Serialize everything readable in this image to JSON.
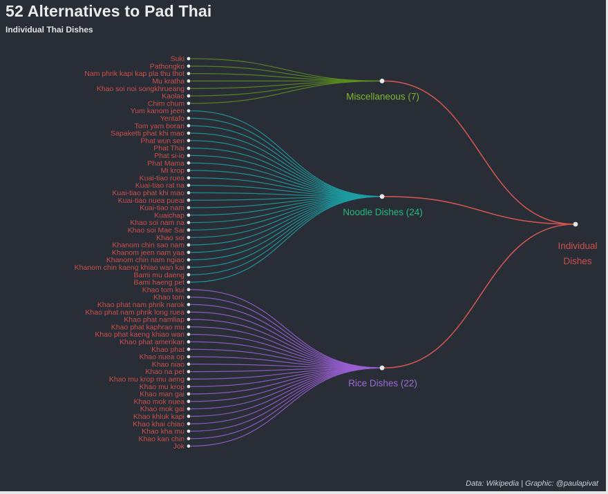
{
  "header": {
    "title": "52 Alternatives to Pad Thai",
    "subtitle": "Individual Thai Dishes"
  },
  "footer": {
    "credit": "Data: Wikipedia | Graphic: @paulapivat"
  },
  "colors": {
    "background": "#292e36",
    "title_text": "#ececec",
    "leaf_label": "#cb4f4c",
    "node_dot": "#e8e8e8",
    "root_link": "#cf5550",
    "root_label": "#cb4f4c",
    "footer_text": "#ccd1d7",
    "frame_border": "#e8e8e8"
  },
  "chart_data": {
    "type": "dendrogram",
    "title": "52 Alternatives to Pad Thai",
    "subtitle": "Individual Thai Dishes",
    "legend_position": "none",
    "root": {
      "label_lines": [
        "Individual",
        "Dishes"
      ],
      "color": "#cb4f4c"
    },
    "groups": [
      {
        "name": "Miscellaneous",
        "count": 7,
        "label": "Miscellaneous (7)",
        "label_color": "#7cb82f",
        "link_color": "#5d8f1f",
        "items": [
          "Suki",
          "Pathongko",
          "Nam phrik kapi kap pla thu thot",
          "Mu kratha",
          "Khao soi noi songkhrueang",
          "Kaolao",
          "Chim chum"
        ]
      },
      {
        "name": "Noodle Dishes",
        "count": 24,
        "label": "Noodle Dishes (24)",
        "label_color": "#27b87d",
        "link_color": "#1d9fa4",
        "items": [
          "Yum kanom jeen",
          "Yentafo",
          "Tom yam boran",
          "Sapaketti phat khi mao",
          "Phat wun sen",
          "Phat Thai",
          "Phat si-io",
          "Phat Mama",
          "Mi krop",
          "Kuai-tiao ruea",
          "Kuai-tiao rat na",
          "Kuai-tiao phat khi mao",
          "Kuai-tiao nuea pueai",
          "Kuai-tiao nam",
          "Kuaichap",
          "Khao soi nam na",
          "Khao soi Mae Sai",
          "Khao soi",
          "Khanom chin sao nam",
          "Khanom jeen nam yaa",
          "Khanom chin nam ngiao",
          "Khanom chin kaeng khiao wan kai",
          "Bami mu daeng",
          "Bami haeng pet"
        ]
      },
      {
        "name": "Rice Dishes",
        "count": 22,
        "label": "Rice Dishes (22)",
        "label_color": "#9c6bd8",
        "link_color": "#9a5fd2",
        "items": [
          "Khao tom kui",
          "Khao tom",
          "Khao phat nam phrik narok",
          "Khao phat nam phrik long ruea",
          "Khao phat namliap",
          "Khao phat kaphrao mu",
          "Khao phat kaeng khiao wan",
          "Khao phat amerikan",
          "Khao phat",
          "Khao nuea op",
          "Khao niao",
          "Khao na pet",
          "Khao mu krop mu aeng",
          "Khao mu krop",
          "Khao man gai",
          "Khao mok nuea",
          "Khao mok gai",
          "Khao khluk kapi",
          "Khao khai chiao",
          "Khao kha mu",
          "Khao kan chin",
          "Jok"
        ]
      }
    ]
  }
}
